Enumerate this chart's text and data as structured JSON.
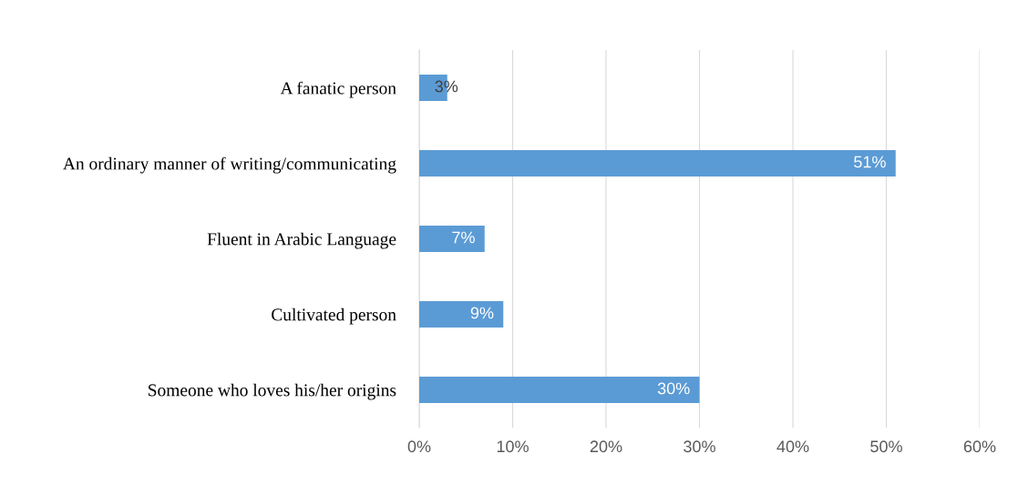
{
  "chart_data": {
    "type": "bar",
    "orientation": "horizontal",
    "categories": [
      "A fanatic person",
      "An ordinary manner of writing/communicating",
      "Fluent in Arabic Language",
      "Cultivated person",
      "Someone who loves his/her origins"
    ],
    "values": [
      3,
      51,
      7,
      9,
      30
    ],
    "value_labels": [
      "3%",
      "51%",
      "7%",
      "9%",
      "30%"
    ],
    "color": "#5b9bd5",
    "xlim": [
      0,
      60
    ],
    "xticks": [
      {
        "value": 0,
        "label": "0%"
      },
      {
        "value": 10,
        "label": "10%"
      },
      {
        "value": 20,
        "label": "20%"
      },
      {
        "value": 30,
        "label": "30%"
      },
      {
        "value": 40,
        "label": "40%"
      },
      {
        "value": 50,
        "label": "50%"
      },
      {
        "value": 60,
        "label": "60%"
      }
    ],
    "grid": "x"
  }
}
